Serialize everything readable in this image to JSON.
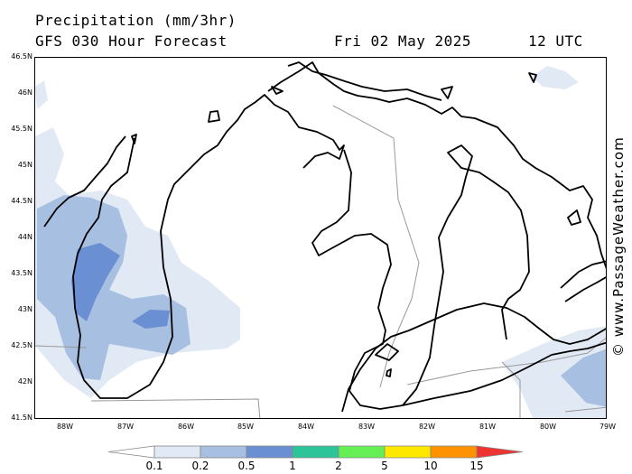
{
  "header": {
    "title": "Precipitation (mm/3hr)",
    "subtitle": "GFS 030 Hour Forecast",
    "date": "Fri 02 May 2025",
    "time": "12 UTC"
  },
  "map": {
    "latitude_labels": [
      "46.5N",
      "46N",
      "45.5N",
      "45N",
      "44.5N",
      "44N",
      "43.5N",
      "43N",
      "42.5N",
      "42N",
      "41.5N"
    ],
    "longitude_labels": [
      "88W",
      "87W",
      "86W",
      "85W",
      "84W",
      "83W",
      "82W",
      "81W",
      "80W",
      "79W"
    ],
    "colors": {
      "land_outline": "#000000",
      "borders": "#999999"
    }
  },
  "legend": {
    "labels": [
      "0.1",
      "0.2",
      "0.5",
      "1",
      "2",
      "5",
      "10",
      "15"
    ],
    "colors": [
      "#ffffff",
      "#e1e9f5",
      "#a7bfe0",
      "#6a8fd2",
      "#2ec49a",
      "#66ee55",
      "#ffe800",
      "#ff9200",
      "#ee3333"
    ]
  },
  "credit": "© www.PassageWeather.com"
}
